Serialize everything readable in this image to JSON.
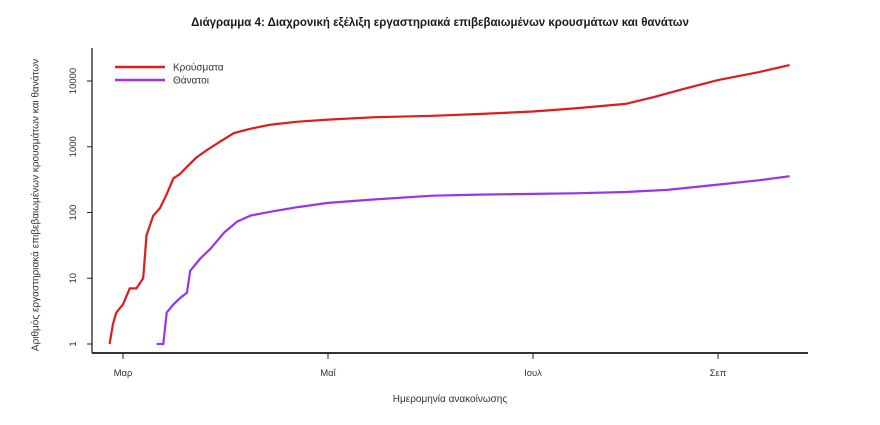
{
  "chart_data": {
    "type": "line",
    "title": "Διάγραμμα 4: Διαχρονική εξέλιξη εργαστηριακά επιβεβαιωμένων κρουσμάτων και θανάτων",
    "xlabel": "Ημερομηνία ανακοίνωσης",
    "ylabel": "Αριθμός εργαστηριακά επιβεβαιωμένων κρουσμάτων και θανάτων",
    "yscale": "log",
    "ylim": [
      0.85,
      25000
    ],
    "y_ticks": [
      1,
      10,
      100,
      1000,
      10000
    ],
    "y_tick_labels": [
      "1",
      "10",
      "100",
      "1000",
      "10000"
    ],
    "x_ticks": [
      "Μαρ",
      "Μαΐ",
      "Ιουλ",
      "Σεπ"
    ],
    "grid": false,
    "legend_position": "top-left",
    "series": [
      {
        "name": "Κρούσματα",
        "color": "#e01b1b",
        "points": [
          [
            "2020-02-26",
            1
          ],
          [
            "2020-02-27",
            2
          ],
          [
            "2020-02-28",
            3
          ],
          [
            "2020-03-01",
            4
          ],
          [
            "2020-03-03",
            7
          ],
          [
            "2020-03-05",
            7
          ],
          [
            "2020-03-07",
            10
          ],
          [
            "2020-03-08",
            45
          ],
          [
            "2020-03-10",
            89
          ],
          [
            "2020-03-12",
            117
          ],
          [
            "2020-03-14",
            190
          ],
          [
            "2020-03-16",
            331
          ],
          [
            "2020-03-18",
            387
          ],
          [
            "2020-03-20",
            495
          ],
          [
            "2020-03-23",
            695
          ],
          [
            "2020-03-26",
            892
          ],
          [
            "2020-03-30",
            1212
          ],
          [
            "2020-04-03",
            1613
          ],
          [
            "2020-04-08",
            1884
          ],
          [
            "2020-04-14",
            2170
          ],
          [
            "2020-04-22",
            2401
          ],
          [
            "2020-05-01",
            2591
          ],
          [
            "2020-05-15",
            2810
          ],
          [
            "2020-06-01",
            2952
          ],
          [
            "2020-06-15",
            3148
          ],
          [
            "2020-07-01",
            3432
          ],
          [
            "2020-07-15",
            3826
          ],
          [
            "2020-08-01",
            4477
          ],
          [
            "2020-08-10",
            5623
          ],
          [
            "2020-08-20",
            7472
          ],
          [
            "2020-09-01",
            10317
          ],
          [
            "2020-09-15",
            13730
          ],
          [
            "2020-09-25",
            17444
          ]
        ]
      },
      {
        "name": "Θάνατοι",
        "color": "#9933ee",
        "points": [
          [
            "2020-03-11",
            1
          ],
          [
            "2020-03-13",
            1
          ],
          [
            "2020-03-14",
            3
          ],
          [
            "2020-03-16",
            4
          ],
          [
            "2020-03-18",
            5
          ],
          [
            "2020-03-20",
            6
          ],
          [
            "2020-03-21",
            13
          ],
          [
            "2020-03-24",
            20
          ],
          [
            "2020-03-27",
            28
          ],
          [
            "2020-03-31",
            49
          ],
          [
            "2020-04-04",
            73
          ],
          [
            "2020-04-08",
            90
          ],
          [
            "2020-04-15",
            105
          ],
          [
            "2020-04-22",
            121
          ],
          [
            "2020-05-01",
            140
          ],
          [
            "2020-05-15",
            158
          ],
          [
            "2020-06-01",
            180
          ],
          [
            "2020-06-15",
            187
          ],
          [
            "2020-07-01",
            192
          ],
          [
            "2020-07-15",
            196
          ],
          [
            "2020-08-01",
            205
          ],
          [
            "2020-08-15",
            221
          ],
          [
            "2020-09-01",
            266
          ],
          [
            "2020-09-15",
            310
          ],
          [
            "2020-09-25",
            357
          ]
        ]
      }
    ]
  },
  "plot": {
    "x_axis_start": "2020-02-15",
    "x_axis_end": "2020-09-30",
    "x_tick_dates": [
      "2020-03-01",
      "2020-05-01",
      "2020-07-01",
      "2020-09-01"
    ]
  }
}
